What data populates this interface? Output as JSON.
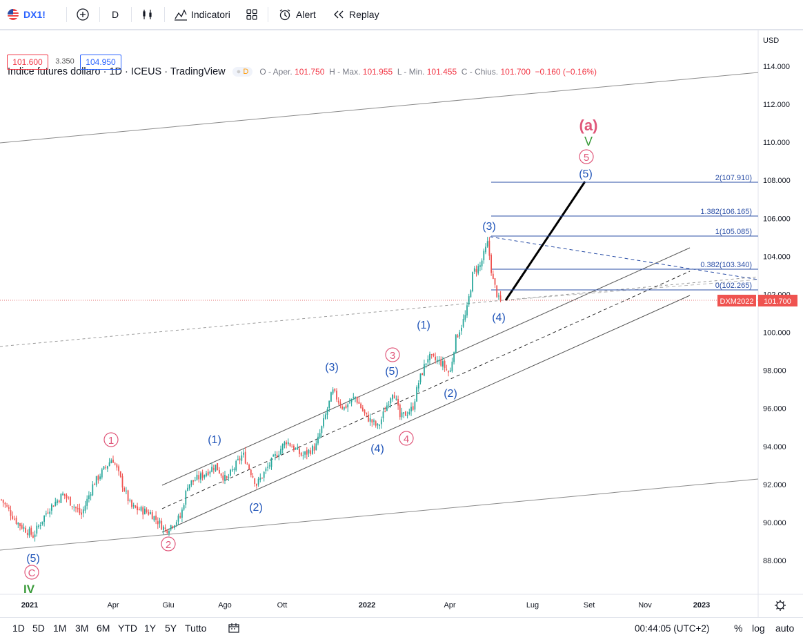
{
  "toolbar": {
    "symbol": "DX1!",
    "interval": "D",
    "indicators_label": "Indicatori",
    "alert_label": "Alert",
    "replay_label": "Replay"
  },
  "legend": {
    "title": "Indice futures dollaro · 1D · ICEUS · TradingView",
    "open_label": "O - Aper.",
    "open": "101.750",
    "high_label": "H - Max.",
    "high": "101.955",
    "low_label": "L - Min.",
    "low": "101.455",
    "close_label": "C - Chius.",
    "close": "101.700",
    "change": "−0.160 (−0.16%)",
    "bid": "101.600",
    "spread": "3.350",
    "ask": "104.950"
  },
  "axis": {
    "currency": "USD",
    "y_ticks": [
      "114.000",
      "112.000",
      "110.000",
      "108.000",
      "106.000",
      "104.000",
      "102.000",
      "100.000",
      "98.000",
      "96.000",
      "94.000",
      "92.000",
      "90.000",
      "88.000"
    ],
    "x_ticks": [
      "2021",
      "Apr",
      "Giu",
      "Ago",
      "Ott",
      "2022",
      "Apr",
      "Lug",
      "Set",
      "Nov",
      "2023"
    ],
    "last_price": "101.700",
    "last_price_symbol": "DXM2022"
  },
  "fibonacci": [
    {
      "label": "2(107.910)"
    },
    {
      "label": "1.382(106.165)"
    },
    {
      "label": "1(105.085)"
    },
    {
      "label": "0.382(103.340)"
    },
    {
      "label": "0(102.265)"
    }
  ],
  "wave_labels": {
    "a_big": "(a)",
    "v_green": "V",
    "five_circle_top": "5",
    "five_blue_top": "(5)",
    "three_top": "(3)",
    "four_bottom": "(4)",
    "one_b": "(1)",
    "two_b": "(2)",
    "three_circle": "3",
    "five_mid": "(5)",
    "three_mid": "(3)",
    "four_mid": "(4)",
    "four_circle": "4",
    "one_left": "(1)",
    "two_left": "(2)",
    "one_circle": "1",
    "two_circle": "2",
    "five_left": "(5)",
    "c_circle": "C",
    "iv_green": "IV"
  },
  "bottom": {
    "ranges": [
      "1D",
      "5D",
      "1M",
      "3M",
      "6M",
      "YTD",
      "1Y",
      "5Y",
      "Tutto"
    ],
    "time": "00:44:05 (UTC+2)",
    "percent": "%",
    "log": "log",
    "auto": "auto"
  },
  "colors": {
    "up": "#26a69a",
    "down": "#ef5350",
    "blue": "#1e53b8",
    "pink": "#e0577a",
    "green": "#3a9a3a",
    "fib": "#2a4ea6"
  },
  "chart_data": {
    "type": "candlestick",
    "title": "Indice futures dollaro · 1D · ICEUS",
    "x": [
      "2021-01",
      "2021-02",
      "2021-03",
      "2021-04",
      "2021-05",
      "2021-06",
      "2021-07",
      "2021-08",
      "2021-09",
      "2021-10",
      "2021-11",
      "2021-12",
      "2022-01",
      "2022-02",
      "2022-03",
      "2022-04",
      "2022-05"
    ],
    "close": [
      90.4,
      90.9,
      92.8,
      91.3,
      89.9,
      92.3,
      92.6,
      92.7,
      94.0,
      94.0,
      96.2,
      96.0,
      96.4,
      96.0,
      98.6,
      103.0,
      101.7
    ],
    "ylim": [
      86.5,
      115.5
    ],
    "y_unit": "USD"
  }
}
